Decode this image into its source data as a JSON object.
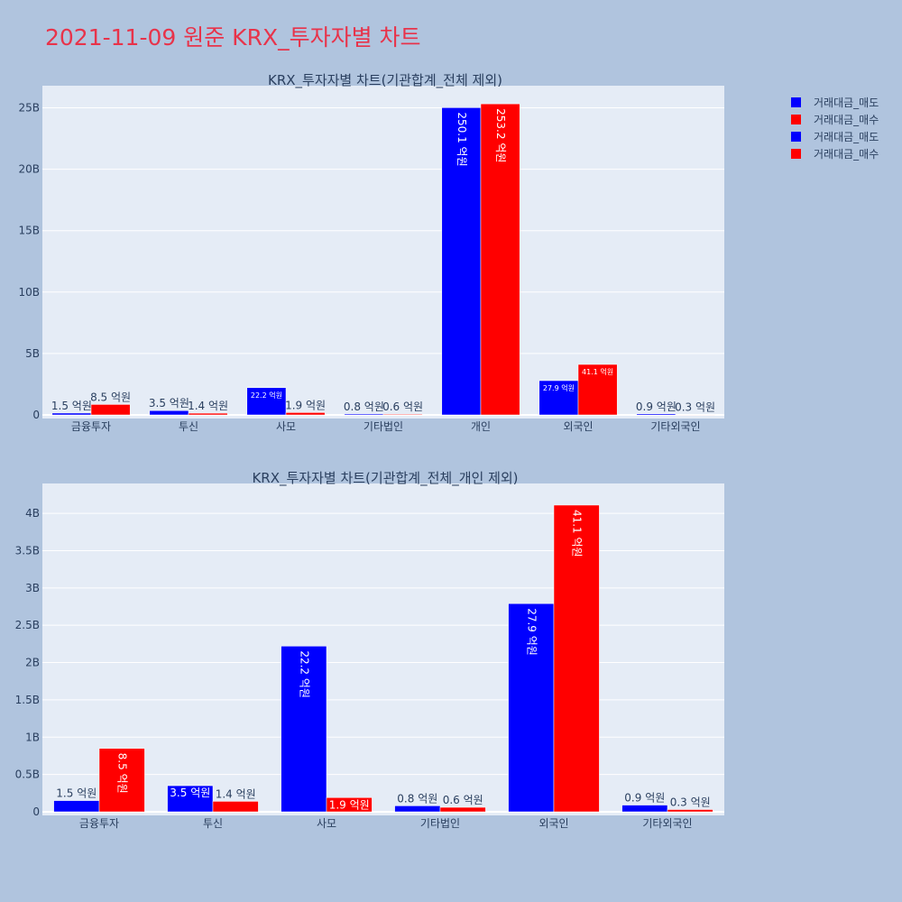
{
  "page_title": "2021-11-09 원준 KRX_투자자별 차트",
  "colors": {
    "sell": "#0000ff",
    "buy": "#ff0000"
  },
  "legend": [
    {
      "name": "거래대금_매도",
      "color": "#0000ff"
    },
    {
      "name": "거래대금_매수",
      "color": "#ff0000"
    },
    {
      "name": "거래대금_매도",
      "color": "#0000ff"
    },
    {
      "name": "거래대금_매수",
      "color": "#ff0000"
    }
  ],
  "chart_data": [
    {
      "type": "bar",
      "title": "KRX_투자자별 차트(기관합계_전체 제외)",
      "categories": [
        "금융투자",
        "투신",
        "사모",
        "기타법인",
        "개인",
        "외국인",
        "기타외국인"
      ],
      "ylim": [
        0,
        26800000000
      ],
      "yticks": [
        0,
        5000000000,
        10000000000,
        15000000000,
        20000000000,
        25000000000
      ],
      "ytick_labels": [
        "0",
        "5B",
        "10B",
        "15B",
        "20B",
        "25B"
      ],
      "series": [
        {
          "name": "거래대금_매도",
          "color": "#0000ff",
          "values": [
            150000000,
            350000000,
            2220000000,
            80000000,
            25010000000,
            2790000000,
            90000000
          ],
          "labels": [
            "1.5 억원",
            "3.5 억원",
            "22.2 억원",
            "0.8 억원",
            "250.1 억원",
            "27.9 억원",
            "0.9 억원"
          ]
        },
        {
          "name": "거래대금_매수",
          "color": "#ff0000",
          "values": [
            850000000,
            140000000,
            190000000,
            60000000,
            25320000000,
            4110000000,
            30000000
          ],
          "labels": [
            "8.5 억원",
            "1.4 억원",
            "1.9 억원",
            "0.6 억원",
            "253.2 억원",
            "41.1 억원",
            "0.3 억원"
          ]
        }
      ]
    },
    {
      "type": "bar",
      "title": "KRX_투자자별 차트(기관합계_전체_개인 제외)",
      "categories": [
        "금융투자",
        "투신",
        "사모",
        "기타법인",
        "외국인",
        "기타외국인"
      ],
      "ylim": [
        0,
        4400000000
      ],
      "yticks": [
        0,
        500000000,
        1000000000,
        1500000000,
        2000000000,
        2500000000,
        3000000000,
        3500000000,
        4000000000
      ],
      "ytick_labels": [
        "0",
        "0.5B",
        "1B",
        "1.5B",
        "2B",
        "2.5B",
        "3B",
        "3.5B",
        "4B"
      ],
      "series": [
        {
          "name": "거래대금_매도",
          "color": "#0000ff",
          "values": [
            150000000,
            350000000,
            2220000000,
            80000000,
            2790000000,
            90000000
          ],
          "labels": [
            "1.5 억원",
            "3.5 억원",
            "22.2 억원",
            "0.8 억원",
            "27.9 억원",
            "0.9 억원"
          ]
        },
        {
          "name": "거래대금_매수",
          "color": "#ff0000",
          "values": [
            850000000,
            140000000,
            190000000,
            60000000,
            4110000000,
            30000000
          ],
          "labels": [
            "8.5 억원",
            "1.4 억원",
            "1.9 억원",
            "0.6 억원",
            "41.1 억원",
            "0.3 억원"
          ]
        }
      ]
    }
  ]
}
